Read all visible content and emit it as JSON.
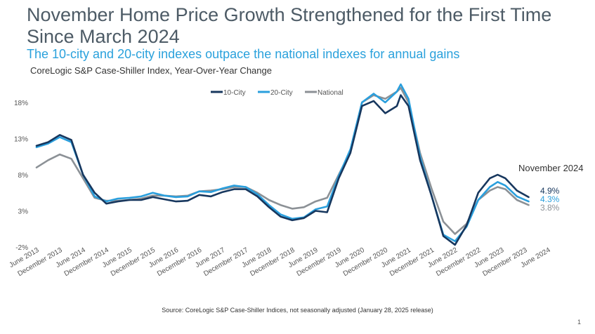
{
  "header": {
    "title": "November Home Price Growth Strengthened for the First Time Since March 2024",
    "subtitle": "The 10-city and 20-city indexes outpace the national indexes for annual gains",
    "caption": "CoreLogic S&P Case-Shiller Index, Year-Over-Year Change"
  },
  "footer": {
    "source": "Source: CoreLogic S&P Case-Shiller Indices, not seasonally adjusted (January 28, 2025 release)",
    "page_number": "1"
  },
  "chart_data": {
    "type": "line",
    "title": "CoreLogic S&P Case-Shiller Index, Year-Over-Year Change",
    "xlabel": "",
    "ylabel": "",
    "ylim": [
      -2,
      21
    ],
    "yticks": [
      -2,
      3,
      8,
      13,
      18
    ],
    "ytick_labels": [
      "-2%",
      "3%",
      "8%",
      "13%",
      "18%"
    ],
    "xtick_labels": [
      "June 2013",
      "December 2013",
      "June 2014",
      "December 2014",
      "June 2015",
      "December 2015",
      "June 2016",
      "December 2016",
      "June 2017",
      "December 2017",
      "June 2018",
      "December 2018",
      "June 2019",
      "December 2019",
      "June 2020",
      "December 2020",
      "June 2021",
      "December 2021",
      "June 2022",
      "December 2022",
      "June 2023",
      "December 2023",
      "June 2024"
    ],
    "annotation": "November 2024",
    "legend_position": "top",
    "grid": false,
    "series": [
      {
        "name": "10-City",
        "color": "#17375e",
        "end_label": "4.9%",
        "points": [
          [
            0,
            12.0
          ],
          [
            3,
            12.5
          ],
          [
            6,
            13.5
          ],
          [
            9,
            12.8
          ],
          [
            12,
            8.0
          ],
          [
            15,
            5.5
          ],
          [
            18,
            4.0
          ],
          [
            21,
            4.3
          ],
          [
            24,
            4.5
          ],
          [
            27,
            4.5
          ],
          [
            30,
            4.9
          ],
          [
            33,
            4.6
          ],
          [
            36,
            4.3
          ],
          [
            39,
            4.4
          ],
          [
            42,
            5.2
          ],
          [
            45,
            5.0
          ],
          [
            48,
            5.6
          ],
          [
            51,
            6.0
          ],
          [
            54,
            6.0
          ],
          [
            57,
            5.0
          ],
          [
            60,
            3.5
          ],
          [
            63,
            2.2
          ],
          [
            66,
            1.7
          ],
          [
            69,
            2.0
          ],
          [
            72,
            3.0
          ],
          [
            75,
            2.8
          ],
          [
            78,
            7.5
          ],
          [
            81,
            11.0
          ],
          [
            84,
            17.5
          ],
          [
            87,
            18.2
          ],
          [
            90,
            16.5
          ],
          [
            93,
            17.5
          ],
          [
            94,
            19.0
          ],
          [
            96,
            17.5
          ],
          [
            99,
            10.0
          ],
          [
            102,
            5.0
          ],
          [
            105,
            -0.5
          ],
          [
            108,
            -1.7
          ],
          [
            111,
            1.0
          ],
          [
            114,
            5.5
          ],
          [
            117,
            7.5
          ],
          [
            119,
            8.0
          ],
          [
            121,
            7.5
          ],
          [
            124,
            5.8
          ],
          [
            127,
            4.9
          ]
        ]
      },
      {
        "name": "20-City",
        "color": "#2a9fdd",
        "end_label": "4.3%",
        "points": [
          [
            0,
            11.8
          ],
          [
            3,
            12.3
          ],
          [
            6,
            13.2
          ],
          [
            9,
            12.5
          ],
          [
            12,
            8.0
          ],
          [
            15,
            5.0
          ],
          [
            18,
            4.3
          ],
          [
            21,
            4.7
          ],
          [
            24,
            4.8
          ],
          [
            27,
            5.0
          ],
          [
            30,
            5.5
          ],
          [
            33,
            5.1
          ],
          [
            36,
            4.9
          ],
          [
            39,
            5.0
          ],
          [
            42,
            5.7
          ],
          [
            45,
            5.6
          ],
          [
            48,
            6.1
          ],
          [
            51,
            6.5
          ],
          [
            54,
            6.3
          ],
          [
            57,
            5.3
          ],
          [
            60,
            3.8
          ],
          [
            63,
            2.5
          ],
          [
            66,
            1.9
          ],
          [
            69,
            2.1
          ],
          [
            72,
            3.2
          ],
          [
            75,
            3.6
          ],
          [
            78,
            7.8
          ],
          [
            81,
            11.5
          ],
          [
            84,
            18.0
          ],
          [
            87,
            19.2
          ],
          [
            90,
            18.0
          ],
          [
            93,
            19.5
          ],
          [
            94,
            20.5
          ],
          [
            96,
            18.5
          ],
          [
            99,
            10.5
          ],
          [
            102,
            5.0
          ],
          [
            105,
            -0.3
          ],
          [
            108,
            -1.2
          ],
          [
            111,
            0.8
          ],
          [
            114,
            4.5
          ],
          [
            117,
            6.3
          ],
          [
            119,
            7.0
          ],
          [
            121,
            6.5
          ],
          [
            124,
            5.0
          ],
          [
            127,
            4.3
          ]
        ]
      },
      {
        "name": "National",
        "color": "#8c9196",
        "end_label": "3.8%",
        "points": [
          [
            0,
            9.0
          ],
          [
            3,
            10.0
          ],
          [
            6,
            10.8
          ],
          [
            9,
            10.2
          ],
          [
            12,
            7.5
          ],
          [
            15,
            4.8
          ],
          [
            18,
            4.4
          ],
          [
            21,
            4.4
          ],
          [
            24,
            4.5
          ],
          [
            27,
            4.7
          ],
          [
            30,
            5.1
          ],
          [
            33,
            5.1
          ],
          [
            36,
            5.0
          ],
          [
            39,
            5.1
          ],
          [
            42,
            5.7
          ],
          [
            45,
            5.8
          ],
          [
            48,
            6.0
          ],
          [
            51,
            6.3
          ],
          [
            54,
            6.3
          ],
          [
            57,
            5.5
          ],
          [
            60,
            4.5
          ],
          [
            63,
            3.8
          ],
          [
            66,
            3.3
          ],
          [
            69,
            3.5
          ],
          [
            72,
            4.3
          ],
          [
            75,
            4.8
          ],
          [
            78,
            8.0
          ],
          [
            81,
            11.2
          ],
          [
            84,
            18.0
          ],
          [
            87,
            19.0
          ],
          [
            90,
            18.5
          ],
          [
            93,
            19.5
          ],
          [
            94,
            20.0
          ],
          [
            96,
            18.0
          ],
          [
            99,
            11.0
          ],
          [
            102,
            6.0
          ],
          [
            105,
            1.5
          ],
          [
            108,
            -0.2
          ],
          [
            111,
            1.2
          ],
          [
            114,
            4.5
          ],
          [
            117,
            5.8
          ],
          [
            119,
            6.3
          ],
          [
            121,
            6.0
          ],
          [
            124,
            4.5
          ],
          [
            127,
            3.8
          ]
        ]
      }
    ]
  }
}
